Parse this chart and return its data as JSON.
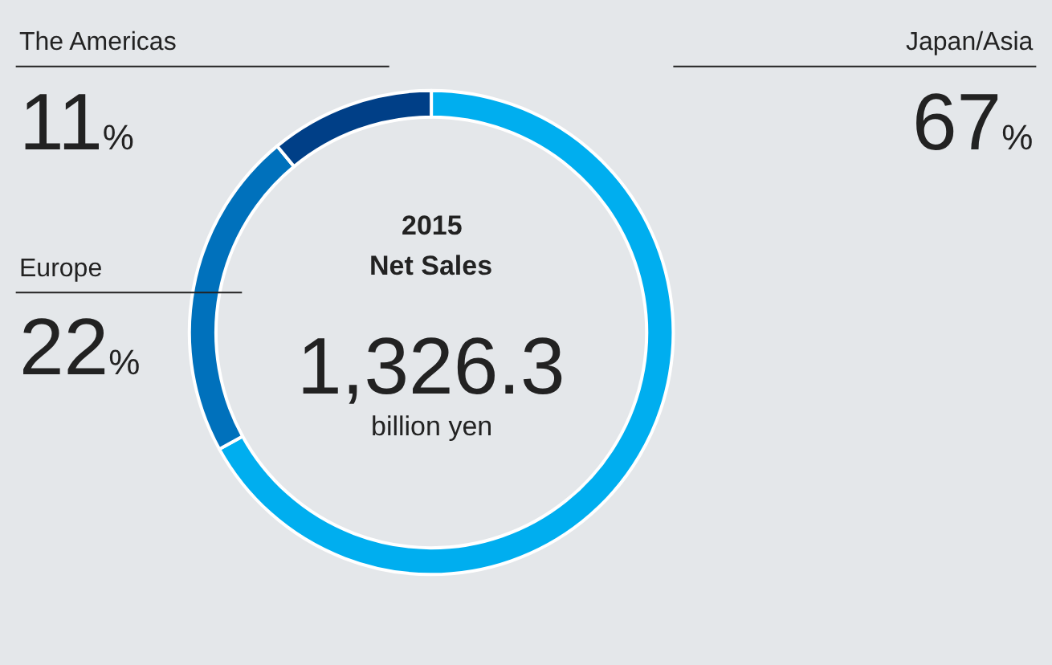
{
  "chart_data": {
    "type": "donut",
    "title": "2015",
    "subtitle": "Net Sales",
    "categories": [
      "Japan/Asia",
      "Europe",
      "The Americas"
    ],
    "values": [
      67,
      22,
      11
    ],
    "colors": [
      "#00aeef",
      "#0071bc",
      "#003f87"
    ],
    "value_labels": [
      "67%",
      "22%",
      "11%"
    ],
    "annotations": [
      "1,326.3",
      "billion yen"
    ],
    "legend": false
  }
}
